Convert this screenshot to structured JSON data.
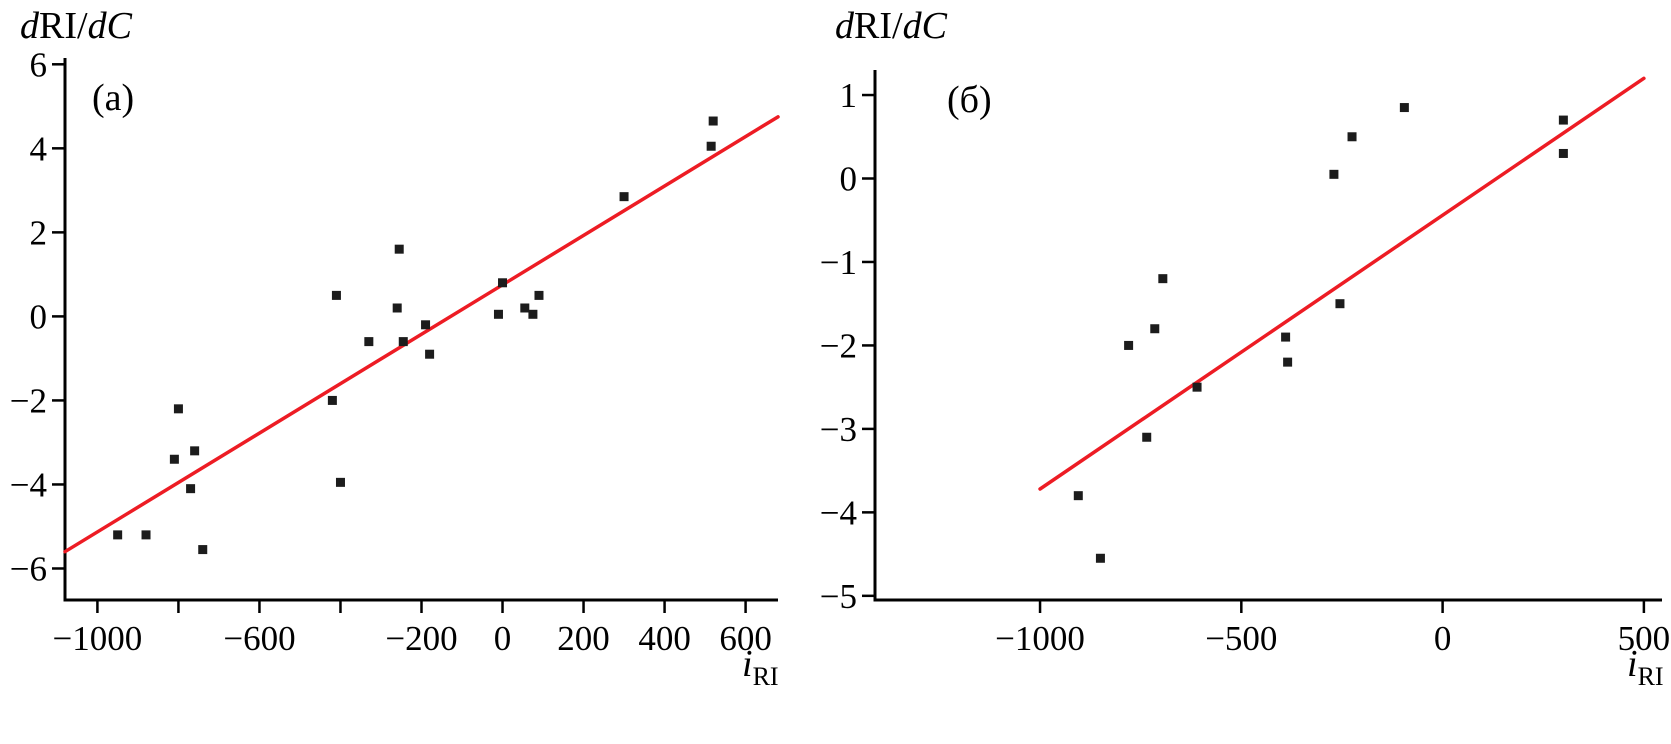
{
  "figure": {
    "background": "#ffffff",
    "axis_color": "#000000",
    "marker_color": "#1c1c1c",
    "fit_line_color": "#ed1c24"
  },
  "chart_data": [
    {
      "type": "scatter",
      "panel_label": "(a)",
      "ylabel": "dRI/dC",
      "xlabel": "iRI",
      "ylabel_parts": [
        {
          "text": "d",
          "style": "italic"
        },
        {
          "text": "RI",
          "style": "normal"
        },
        {
          "text": "/",
          "style": "normal"
        },
        {
          "text": "d",
          "style": "italic"
        },
        {
          "text": "C",
          "style": "italic"
        }
      ],
      "xlabel_parts": [
        {
          "text": "i",
          "style": "italic"
        },
        {
          "text": "RI",
          "style": "sub"
        }
      ],
      "xlim": [
        -1080,
        680
      ],
      "ylim": [
        -6.75,
        6.15
      ],
      "grid": false,
      "legend": false,
      "x_ticks": [
        {
          "v": -1000,
          "label": "−1000"
        },
        {
          "v": -800,
          "label": ""
        },
        {
          "v": -600,
          "label": "−600"
        },
        {
          "v": -400,
          "label": ""
        },
        {
          "v": -200,
          "label": "−200"
        },
        {
          "v": 0,
          "label": "0"
        },
        {
          "v": 200,
          "label": "200"
        },
        {
          "v": 400,
          "label": "400"
        },
        {
          "v": 600,
          "label": "600"
        }
      ],
      "y_ticks": [
        {
          "v": 6,
          "label": "6"
        },
        {
          "v": 4,
          "label": "4"
        },
        {
          "v": 2,
          "label": "2"
        },
        {
          "v": 0,
          "label": "0"
        },
        {
          "v": -2,
          "label": "−2"
        },
        {
          "v": -4,
          "label": "−4"
        },
        {
          "v": -6,
          "label": "−6"
        }
      ],
      "points": [
        [
          -950,
          -5.2
        ],
        [
          -880,
          -5.2
        ],
        [
          -810,
          -3.4
        ],
        [
          -800,
          -2.2
        ],
        [
          -770,
          -4.1
        ],
        [
          -760,
          -3.2
        ],
        [
          -740,
          -5.55
        ],
        [
          -420,
          -2.0
        ],
        [
          -410,
          0.5
        ],
        [
          -400,
          -3.95
        ],
        [
          -330,
          -0.6
        ],
        [
          -260,
          0.2
        ],
        [
          -255,
          1.6
        ],
        [
          -245,
          -0.6
        ],
        [
          -190,
          -0.2
        ],
        [
          -180,
          -0.9
        ],
        [
          -10,
          0.05
        ],
        [
          0,
          0.8
        ],
        [
          55,
          0.2
        ],
        [
          75,
          0.05
        ],
        [
          90,
          0.5
        ],
        [
          300,
          2.85
        ],
        [
          515,
          4.05
        ],
        [
          520,
          4.65
        ]
      ],
      "fit_line": {
        "x1": -1080,
        "y1": -5.6,
        "x2": 680,
        "y2": 4.75
      }
    },
    {
      "type": "scatter",
      "panel_label": "(б)",
      "ylabel": "dRI/dC",
      "xlabel": "iRI",
      "ylabel_parts": [
        {
          "text": "d",
          "style": "italic"
        },
        {
          "text": "RI",
          "style": "normal"
        },
        {
          "text": "/",
          "style": "normal"
        },
        {
          "text": "d",
          "style": "italic"
        },
        {
          "text": "C",
          "style": "italic"
        }
      ],
      "xlabel_parts": [
        {
          "text": "i",
          "style": "italic"
        },
        {
          "text": "RI",
          "style": "sub"
        }
      ],
      "xlim": [
        -1410,
        545
      ],
      "ylim": [
        -5.05,
        1.3
      ],
      "grid": false,
      "legend": false,
      "x_ticks": [
        {
          "v": -1000,
          "label": "−1000"
        },
        {
          "v": -500,
          "label": "−500"
        },
        {
          "v": 0,
          "label": "0"
        },
        {
          "v": 500,
          "label": "500"
        }
      ],
      "y_ticks": [
        {
          "v": 1,
          "label": "1"
        },
        {
          "v": 0,
          "label": "0"
        },
        {
          "v": -1,
          "label": "−1"
        },
        {
          "v": -2,
          "label": "−2"
        },
        {
          "v": -3,
          "label": "−3"
        },
        {
          "v": -4,
          "label": "−4"
        },
        {
          "v": -5,
          "label": "−5"
        }
      ],
      "points": [
        [
          -905,
          -3.8
        ],
        [
          -850,
          -4.55
        ],
        [
          -780,
          -2.0
        ],
        [
          -735,
          -3.1
        ],
        [
          -715,
          -1.8
        ],
        [
          -695,
          -1.2
        ],
        [
          -610,
          -2.5
        ],
        [
          -390,
          -1.9
        ],
        [
          -385,
          -2.2
        ],
        [
          -255,
          -1.5
        ],
        [
          -270,
          0.05
        ],
        [
          -225,
          0.5
        ],
        [
          -95,
          0.85
        ],
        [
          300,
          0.7
        ],
        [
          300,
          0.3
        ]
      ],
      "fit_line": {
        "x1": -1000,
        "y1": -3.72,
        "x2": 500,
        "y2": 1.2
      }
    }
  ]
}
